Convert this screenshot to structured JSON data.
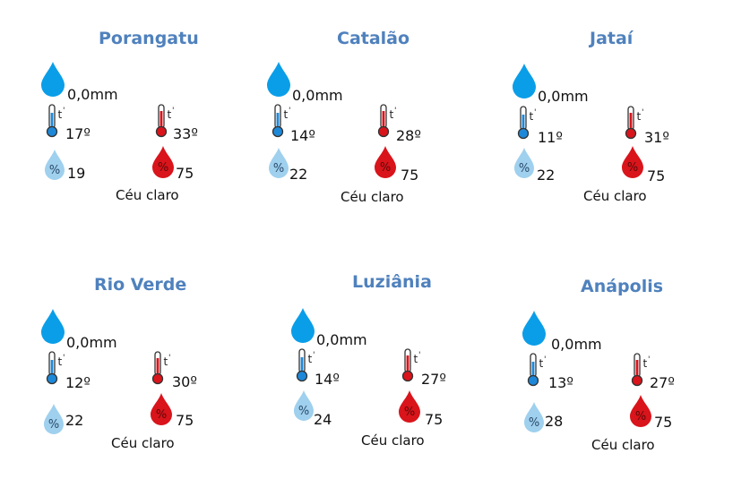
{
  "cities": [
    {
      "name": "Porangatu",
      "rain": "0,0mm",
      "tmin": "17º",
      "tmax": "33º",
      "hmin": "19",
      "hmax": "75",
      "condition": "Céu claro"
    },
    {
      "name": "Catalão",
      "rain": "0,0mm",
      "tmin": "14º",
      "tmax": "28º",
      "hmin": "22",
      "hmax": "75",
      "condition": "Céu claro"
    },
    {
      "name": "Jataí",
      "rain": "0,0mm",
      "tmin": "11º",
      "tmax": "31º",
      "hmin": "22",
      "hmax": "75",
      "condition": "Céu claro"
    },
    {
      "name": "Rio Verde",
      "rain": "0,0mm",
      "tmin": "12º",
      "tmax": "30º",
      "hmin": "22",
      "hmax": "75",
      "condition": "Céu claro"
    },
    {
      "name": "Luziânia",
      "rain": "0,0mm",
      "tmin": "14º",
      "tmax": "27º",
      "hmin": "24",
      "hmax": "75",
      "condition": "Céu claro"
    },
    {
      "name": "Anápolis",
      "rain": "0,0mm",
      "tmin": "13º",
      "tmax": "27º",
      "hmin": "28",
      "hmax": "75",
      "condition": "Céu claro"
    }
  ],
  "icons": {
    "rain": "raindrop-icon",
    "tmin": "thermometer-cold-icon",
    "tmax": "thermometer-hot-icon",
    "hmin": "humidity-low-icon",
    "hmax": "humidity-high-icon"
  },
  "colors": {
    "title": "#4f81bd",
    "rain_drop": "#0a9ee8",
    "cold": "#1e88d8",
    "hot": "#d9141b",
    "humidity_low": "#9fd0ee",
    "humidity_high": "#d9141b"
  }
}
